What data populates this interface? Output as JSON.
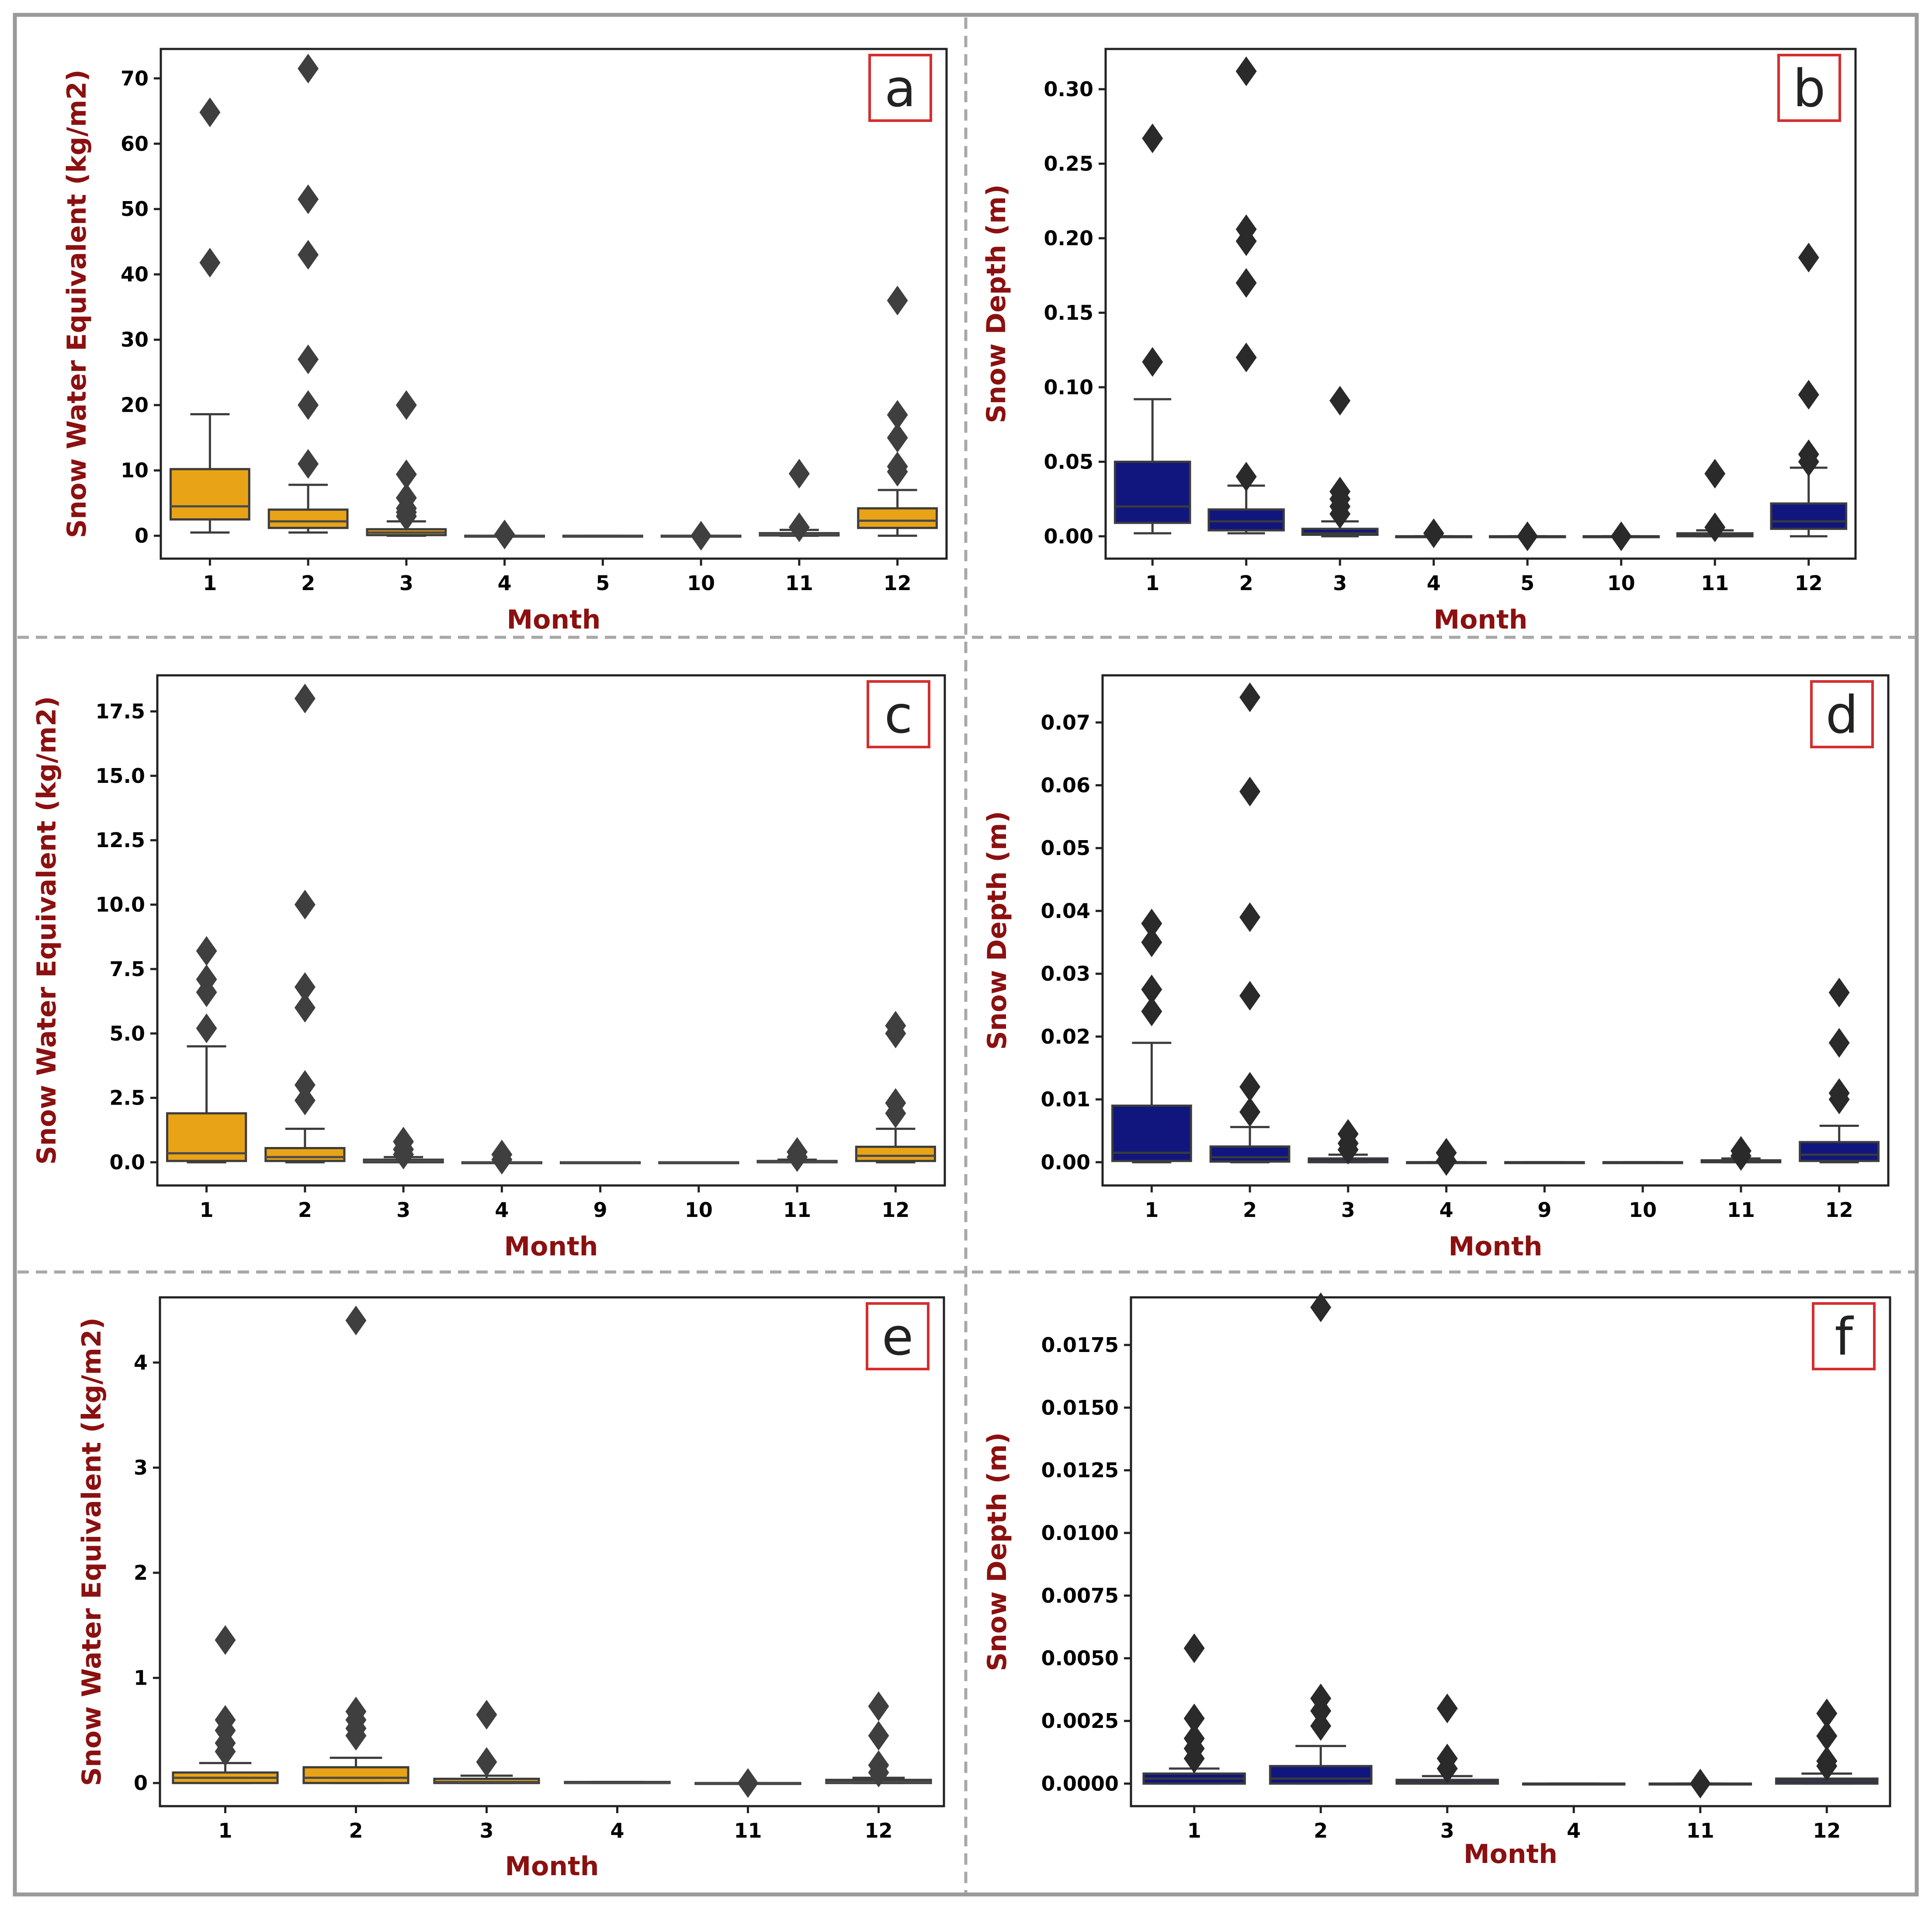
{
  "colors": {
    "swe": "#E8A317",
    "depth": "#10167E",
    "label": "#8B1010",
    "badge_border": "#D32F2F",
    "frame": "#9a9a9a",
    "divider": "#a8a8a8",
    "median_swe": "#4a4a4a",
    "median_depth": "#3a3a3a",
    "flier_swe": "#3f3f3f",
    "flier_depth": "#2a2a2a"
  },
  "chart_data": [
    {
      "panel": "a",
      "type": "box",
      "variable": "swe",
      "xlabel": "Month",
      "ylabel": "Snow Water Equivalent (kg/m2)",
      "ylim": [
        -3.5,
        74.5
      ],
      "yticks": [
        0,
        10,
        20,
        30,
        40,
        50,
        60,
        70
      ],
      "ytick_labels": [
        "0",
        "10",
        "20",
        "30",
        "40",
        "50",
        "60",
        "70"
      ],
      "categories": [
        "1",
        "2",
        "3",
        "4",
        "5",
        "10",
        "11",
        "12"
      ],
      "boxes": [
        {
          "whislo": 0.5,
          "q1": 2.5,
          "med": 4.5,
          "q3": 10.2,
          "whishi": 18.6,
          "fliers": [
            41.8,
            64.8
          ]
        },
        {
          "whislo": 0.5,
          "q1": 1.2,
          "med": 2.2,
          "q3": 4.0,
          "whishi": 7.8,
          "fliers": [
            11,
            20,
            27,
            43,
            51.5,
            71.5
          ]
        },
        {
          "whislo": 0.0,
          "q1": 0.1,
          "med": 0.5,
          "q3": 1.0,
          "whishi": 2.2,
          "fliers": [
            3.0,
            3.6,
            4.2,
            5.8,
            9.4,
            20
          ]
        },
        {
          "whislo": 0,
          "q1": 0,
          "med": 0,
          "q3": 0,
          "whishi": 0,
          "fliers": [
            0.2
          ]
        },
        {
          "whislo": 0,
          "q1": 0,
          "med": 0,
          "q3": 0,
          "whishi": 0,
          "fliers": []
        },
        {
          "whislo": 0,
          "q1": 0,
          "med": 0,
          "q3": 0,
          "whishi": 0,
          "fliers": [
            0
          ]
        },
        {
          "whislo": 0,
          "q1": 0.05,
          "med": 0.2,
          "q3": 0.4,
          "whishi": 0.9,
          "fliers": [
            1.3,
            9.5
          ]
        },
        {
          "whislo": 0,
          "q1": 1.2,
          "med": 2.3,
          "q3": 4.2,
          "whishi": 7.0,
          "fliers": [
            9.8,
            10.6,
            15,
            18.5,
            36
          ]
        }
      ]
    },
    {
      "panel": "b",
      "type": "box",
      "variable": "depth",
      "xlabel": "Month",
      "ylabel": "Snow Depth (m)",
      "ylim": [
        -0.015,
        0.327
      ],
      "yticks": [
        0,
        0.05,
        0.1,
        0.15,
        0.2,
        0.25,
        0.3
      ],
      "ytick_labels": [
        "0.00",
        "0.05",
        "0.10",
        "0.15",
        "0.20",
        "0.25",
        "0.30"
      ],
      "categories": [
        "1",
        "2",
        "3",
        "4",
        "5",
        "10",
        "11",
        "12"
      ],
      "boxes": [
        {
          "whislo": 0.002,
          "q1": 0.009,
          "med": 0.02,
          "q3": 0.05,
          "whishi": 0.092,
          "fliers": [
            0.117,
            0.267
          ]
        },
        {
          "whislo": 0.002,
          "q1": 0.004,
          "med": 0.01,
          "q3": 0.018,
          "whishi": 0.034,
          "fliers": [
            0.04,
            0.12,
            0.17,
            0.198,
            0.206,
            0.312
          ]
        },
        {
          "whislo": 0,
          "q1": 0.001,
          "med": 0.002,
          "q3": 0.005,
          "whishi": 0.01,
          "fliers": [
            0.015,
            0.02,
            0.025,
            0.03,
            0.091
          ]
        },
        {
          "whislo": 0,
          "q1": 0,
          "med": 0,
          "q3": 0,
          "whishi": 0,
          "fliers": [
            0.002
          ]
        },
        {
          "whislo": 0,
          "q1": 0,
          "med": 0,
          "q3": 0,
          "whishi": 0,
          "fliers": [
            0
          ]
        },
        {
          "whislo": 0,
          "q1": 0,
          "med": 0,
          "q3": 0,
          "whishi": 0,
          "fliers": [
            0
          ]
        },
        {
          "whislo": 0,
          "q1": 0,
          "med": 0.001,
          "q3": 0.002,
          "whishi": 0.004,
          "fliers": [
            0.006,
            0.042
          ]
        },
        {
          "whislo": 0,
          "q1": 0.005,
          "med": 0.01,
          "q3": 0.022,
          "whishi": 0.046,
          "fliers": [
            0.05,
            0.055,
            0.095,
            0.187
          ]
        }
      ]
    },
    {
      "panel": "c",
      "type": "box",
      "variable": "swe",
      "xlabel": "Month",
      "ylabel": "Snow Water Equivalent (kg/m2)",
      "ylim": [
        -0.9,
        18.9
      ],
      "yticks": [
        0,
        2.5,
        5,
        7.5,
        10,
        12.5,
        15,
        17.5
      ],
      "ytick_labels": [
        "0.0",
        "2.5",
        "5.0",
        "7.5",
        "10.0",
        "12.5",
        "15.0",
        "17.5"
      ],
      "categories": [
        "1",
        "2",
        "3",
        "4",
        "9",
        "10",
        "11",
        "12"
      ],
      "boxes": [
        {
          "whislo": 0,
          "q1": 0.05,
          "med": 0.35,
          "q3": 1.9,
          "whishi": 4.5,
          "fliers": [
            5.2,
            6.6,
            7.1,
            8.2
          ]
        },
        {
          "whislo": 0,
          "q1": 0.05,
          "med": 0.2,
          "q3": 0.55,
          "whishi": 1.3,
          "fliers": [
            2.4,
            3.0,
            6.0,
            6.8,
            10.0,
            18.0
          ]
        },
        {
          "whislo": 0,
          "q1": 0,
          "med": 0.05,
          "q3": 0.1,
          "whishi": 0.2,
          "fliers": [
            0.3,
            0.5,
            0.8
          ]
        },
        {
          "whislo": 0,
          "q1": 0,
          "med": 0,
          "q3": 0,
          "whishi": 0,
          "fliers": [
            0.1,
            0.3
          ]
        },
        {
          "whislo": 0,
          "q1": 0,
          "med": 0,
          "q3": 0,
          "whishi": 0,
          "fliers": []
        },
        {
          "whislo": 0,
          "q1": 0,
          "med": 0,
          "q3": 0,
          "whishi": 0,
          "fliers": []
        },
        {
          "whislo": 0,
          "q1": 0,
          "med": 0.02,
          "q3": 0.05,
          "whishi": 0.1,
          "fliers": [
            0.2,
            0.4
          ]
        },
        {
          "whislo": 0,
          "q1": 0.05,
          "med": 0.25,
          "q3": 0.6,
          "whishi": 1.3,
          "fliers": [
            1.9,
            2.3,
            5.0,
            5.3
          ]
        }
      ]
    },
    {
      "panel": "d",
      "type": "box",
      "variable": "depth",
      "xlabel": "Month",
      "ylabel": "Snow Depth (m)",
      "ylim": [
        -0.0037,
        0.0775
      ],
      "yticks": [
        0,
        0.01,
        0.02,
        0.03,
        0.04,
        0.05,
        0.06,
        0.07
      ],
      "ytick_labels": [
        "0.00",
        "0.01",
        "0.02",
        "0.03",
        "0.04",
        "0.05",
        "0.06",
        "0.07"
      ],
      "categories": [
        "1",
        "2",
        "3",
        "4",
        "9",
        "10",
        "11",
        "12"
      ],
      "boxes": [
        {
          "whislo": 0,
          "q1": 0.0002,
          "med": 0.0015,
          "q3": 0.009,
          "whishi": 0.019,
          "fliers": [
            0.024,
            0.0275,
            0.035,
            0.038
          ]
        },
        {
          "whislo": 0,
          "q1": 0.0001,
          "med": 0.0008,
          "q3": 0.0025,
          "whishi": 0.0056,
          "fliers": [
            0.008,
            0.012,
            0.0265,
            0.039,
            0.059,
            0.074
          ]
        },
        {
          "whislo": 0,
          "q1": 0,
          "med": 0.0002,
          "q3": 0.0006,
          "whishi": 0.0012,
          "fliers": [
            0.002,
            0.003,
            0.0045
          ]
        },
        {
          "whislo": 0,
          "q1": 0,
          "med": 0,
          "q3": 0,
          "whishi": 0,
          "fliers": [
            0.0002,
            0.0015
          ]
        },
        {
          "whislo": 0,
          "q1": 0,
          "med": 0,
          "q3": 0,
          "whishi": 0,
          "fliers": []
        },
        {
          "whislo": 0,
          "q1": 0,
          "med": 0,
          "q3": 0,
          "whishi": 0,
          "fliers": []
        },
        {
          "whislo": 0,
          "q1": 0,
          "med": 0.0001,
          "q3": 0.0003,
          "whishi": 0.0006,
          "fliers": [
            0.001,
            0.0018
          ]
        },
        {
          "whislo": 0,
          "q1": 0.0002,
          "med": 0.0012,
          "q3": 0.0032,
          "whishi": 0.0058,
          "fliers": [
            0.01,
            0.011,
            0.019,
            0.027
          ]
        }
      ]
    },
    {
      "panel": "e",
      "type": "box",
      "variable": "swe",
      "xlabel": "Month",
      "ylabel": "Snow Water Equivalent (kg/m2)",
      "ylim": [
        -0.22,
        4.62
      ],
      "yticks": [
        0,
        1,
        2,
        3,
        4
      ],
      "ytick_labels": [
        "0",
        "1",
        "2",
        "3",
        "4"
      ],
      "categories": [
        "1",
        "2",
        "3",
        "4",
        "11",
        "12"
      ],
      "boxes": [
        {
          "whislo": 0,
          "q1": 0,
          "med": 0.05,
          "q3": 0.1,
          "whishi": 0.19,
          "fliers": [
            0.3,
            0.38,
            0.5,
            0.6,
            1.36
          ]
        },
        {
          "whislo": 0,
          "q1": 0,
          "med": 0.05,
          "q3": 0.15,
          "whishi": 0.24,
          "fliers": [
            0.45,
            0.52,
            0.6,
            0.68,
            4.4
          ]
        },
        {
          "whislo": 0,
          "q1": 0,
          "med": 0.01,
          "q3": 0.04,
          "whishi": 0.07,
          "fliers": [
            0.2,
            0.65
          ]
        },
        {
          "whislo": 0,
          "q1": 0,
          "med": 0,
          "q3": 0.01,
          "whishi": 0.01,
          "fliers": []
        },
        {
          "whislo": 0,
          "q1": 0,
          "med": 0,
          "q3": 0,
          "whishi": 0,
          "fliers": [
            0
          ]
        },
        {
          "whislo": 0,
          "q1": 0,
          "med": 0.01,
          "q3": 0.03,
          "whishi": 0.05,
          "fliers": [
            0.1,
            0.17,
            0.45,
            0.73
          ]
        }
      ]
    },
    {
      "panel": "f",
      "type": "box",
      "variable": "depth",
      "xlabel": "Month",
      "ylabel": "Snow Depth (m)",
      "ylim": [
        -0.0009,
        0.0194
      ],
      "yticks": [
        0,
        0.0025,
        0.005,
        0.0075,
        0.01,
        0.0125,
        0.015,
        0.0175
      ],
      "ytick_labels": [
        "0.0000",
        "0.0025",
        "0.0050",
        "0.0075",
        "0.0100",
        "0.0125",
        "0.0150",
        "0.0175"
      ],
      "categories": [
        "1",
        "2",
        "3",
        "4",
        "11",
        "12"
      ],
      "boxes": [
        {
          "whislo": 0,
          "q1": 0,
          "med": 0.0002,
          "q3": 0.0004,
          "whishi": 0.0006,
          "fliers": [
            0.001,
            0.0014,
            0.0018,
            0.0026,
            0.0054
          ]
        },
        {
          "whislo": 0,
          "q1": 0,
          "med": 0.0002,
          "q3": 0.0007,
          "whishi": 0.0015,
          "fliers": [
            0.0023,
            0.0029,
            0.0034,
            0.019
          ]
        },
        {
          "whislo": 0,
          "q1": 0,
          "med": 5e-05,
          "q3": 0.00015,
          "whishi": 0.0003,
          "fliers": [
            0.0006,
            0.001,
            0.003
          ]
        },
        {
          "whislo": 0,
          "q1": 0,
          "med": 0,
          "q3": 0,
          "whishi": 0,
          "fliers": []
        },
        {
          "whislo": 0,
          "q1": 0,
          "med": 0,
          "q3": 0,
          "whishi": 0,
          "fliers": [
            0
          ]
        },
        {
          "whislo": 0,
          "q1": 0,
          "med": 0.0001,
          "q3": 0.0002,
          "whishi": 0.0004,
          "fliers": [
            0.0007,
            0.0009,
            0.0019,
            0.0028
          ]
        }
      ]
    }
  ]
}
